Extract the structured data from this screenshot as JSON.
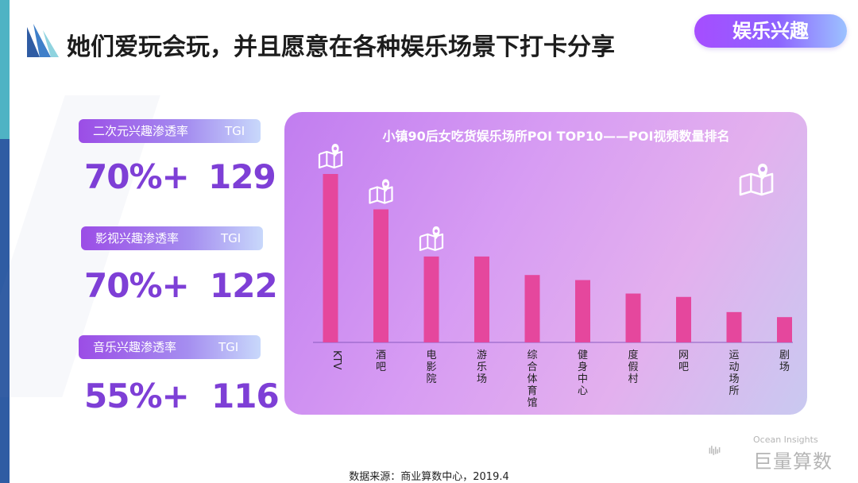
{
  "header": {
    "title": "她们爱玩会玩，并且愿意在各种娱乐场景下打卡分享",
    "category": "娱乐兴趣"
  },
  "metrics": [
    {
      "label": "二次元兴趣渗透率",
      "tgi_label": "TGI",
      "penetration": "70%+",
      "tgi": "129"
    },
    {
      "label": "影视兴趣渗透率",
      "tgi_label": "TGI",
      "penetration": "70%+",
      "tgi": "122"
    },
    {
      "label": "音乐兴趣渗透率",
      "tgi_label": "TGI",
      "penetration": "55%+",
      "tgi": "116"
    }
  ],
  "chart_data": {
    "type": "bar",
    "title": "小镇90后女吃货娱乐场所POI TOP10——POI视频数量排名",
    "categories": [
      "KTV",
      "酒吧",
      "电影院",
      "游乐场",
      "综合体育馆",
      "健身中心",
      "度假村",
      "网吧",
      "运动场所",
      "剧场"
    ],
    "values": [
      100,
      79,
      51,
      51,
      40,
      37,
      29,
      27,
      18,
      15
    ],
    "ylim": [
      0,
      100
    ],
    "grid": false,
    "legend": "none",
    "bar_color": "#e5479d",
    "icon_markers": [
      "map-pin-icon",
      "map-pin-icon",
      "map-pin-icon"
    ]
  },
  "footer": {
    "source": "数据来源：商业算数中心，2019.4",
    "brand_sub": "Ocean Insights",
    "brand_name": "巨量算数"
  }
}
